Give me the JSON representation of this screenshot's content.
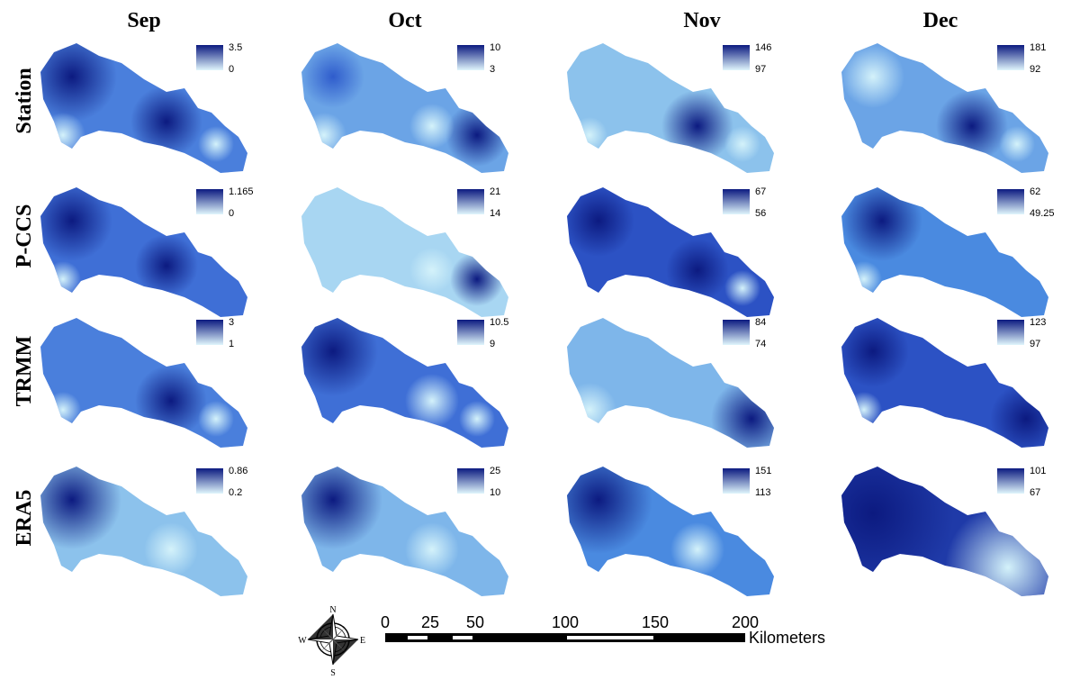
{
  "columns": [
    "Sep",
    "Oct",
    "Nov",
    "Dec"
  ],
  "rows": [
    {
      "label": "Station",
      "panels": [
        {
          "max": "3.5",
          "min": "0"
        },
        {
          "max": "10",
          "min": "3"
        },
        {
          "max": "146",
          "min": "97"
        },
        {
          "max": "181",
          "min": "92"
        }
      ]
    },
    {
      "label": "P-CCS",
      "panels": [
        {
          "max": "1.165",
          "min": "0"
        },
        {
          "max": "21",
          "min": "14"
        },
        {
          "max": "67",
          "min": "56"
        },
        {
          "max": "62",
          "min": "49.25"
        }
      ]
    },
    {
      "label": "TRMM",
      "panels": [
        {
          "max": "3",
          "min": "1"
        },
        {
          "max": "10.5",
          "min": "9"
        },
        {
          "max": "84",
          "min": "74"
        },
        {
          "max": "123",
          "min": "97"
        }
      ]
    },
    {
      "label": "ERA5",
      "panels": [
        {
          "max": "0.86",
          "min": "0.2"
        },
        {
          "max": "25",
          "min": "10"
        },
        {
          "max": "151",
          "min": "113"
        },
        {
          "max": "101",
          "min": "67"
        }
      ]
    }
  ],
  "scale_bar": {
    "ticks": [
      0,
      25,
      50,
      100,
      150,
      200
    ],
    "unit": "Kilometers"
  },
  "compass": {
    "north": "N",
    "east": "E",
    "south": "S",
    "west": "W"
  }
}
